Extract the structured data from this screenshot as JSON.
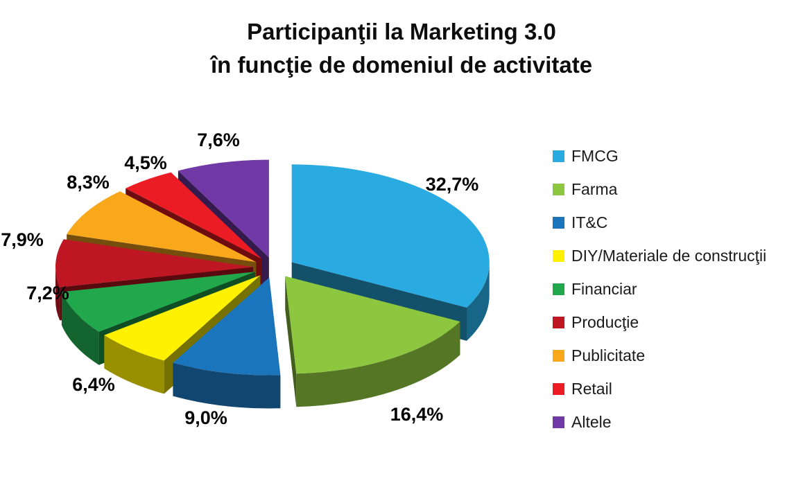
{
  "page": {
    "background": "#FFFFFF"
  },
  "title": {
    "line1": "Participanţii la Marketing 3.0",
    "line2": "în funcţie de domeniul de activitate",
    "color": "#000000"
  },
  "chart_data": {
    "type": "pie",
    "style": "3d-exploded",
    "title": "Participanţii la Marketing 3.0 în funcţie de domeniul de activitate",
    "unit": "%",
    "direction": "clockwise",
    "start_angle": "12-oclock",
    "legend_position": "right",
    "label_color": "#000000",
    "background": "#FFFFFF",
    "slices": [
      {
        "name": "FMCG",
        "value": 32.7,
        "label": "32,7%",
        "color": "#29ABE2"
      },
      {
        "name": "Farma",
        "value": 16.4,
        "label": "16,4%",
        "color": "#8DC63F"
      },
      {
        "name": "IT&C",
        "value": 9.0,
        "label": "9,0%",
        "color": "#1B75BC"
      },
      {
        "name": "DIY/Materiale de construcţii",
        "value": 6.4,
        "label": "6,4%",
        "color": "#FFF100"
      },
      {
        "name": "Financiar",
        "value": 7.2,
        "label": "7,2%",
        "color": "#21A84D"
      },
      {
        "name": "Producţie",
        "value": 7.9,
        "label": "7,9%",
        "color": "#BE1622"
      },
      {
        "name": "Publicitate",
        "value": 8.3,
        "label": "8,3%",
        "color": "#F9A81C"
      },
      {
        "name": "Retail",
        "value": 4.5,
        "label": "4,5%",
        "color": "#EC1C24"
      },
      {
        "name": "Altele",
        "value": 7.6,
        "label": "7,6%",
        "color": "#7139A6"
      }
    ]
  }
}
